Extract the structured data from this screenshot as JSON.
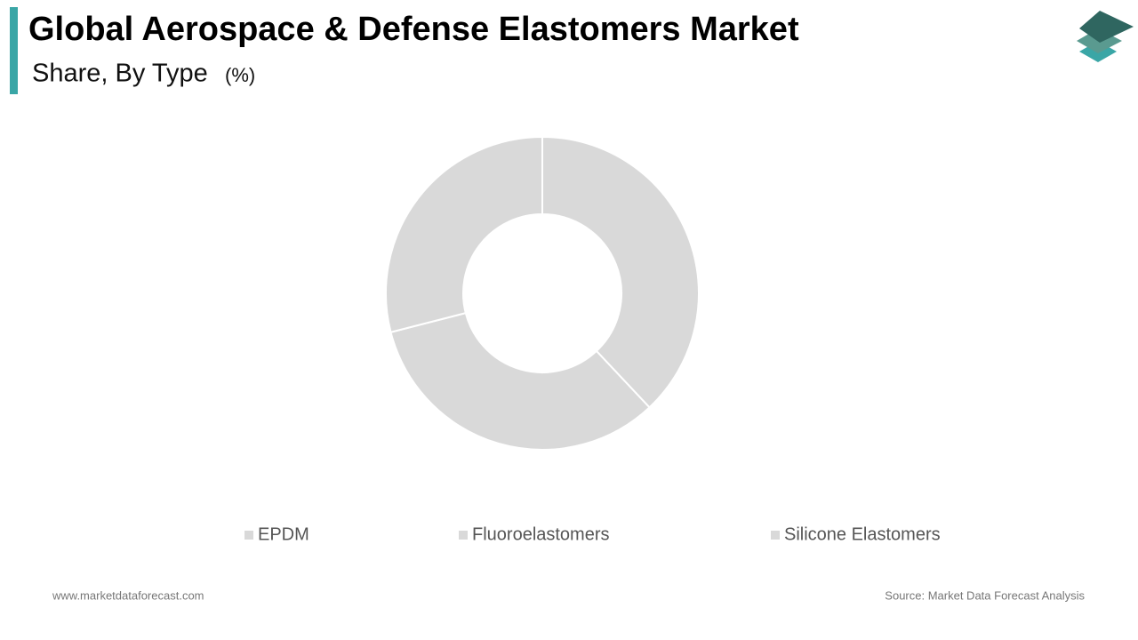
{
  "chart_data": {
    "type": "donut",
    "title": "Global Aerospace & Defense Elastomers Market",
    "subtitle": "Share, By Type",
    "unit": "(%)",
    "categories": [
      "EPDM",
      "Fluoroelastomers",
      "Silicone Elastomers"
    ],
    "values": [
      38,
      33,
      29
    ],
    "colors": [
      "#d9d9d9",
      "#d9d9d9",
      "#d9d9d9"
    ],
    "website": "www.marketdataforecast.com",
    "source": "Source: Market Data Forecast Analysis"
  }
}
